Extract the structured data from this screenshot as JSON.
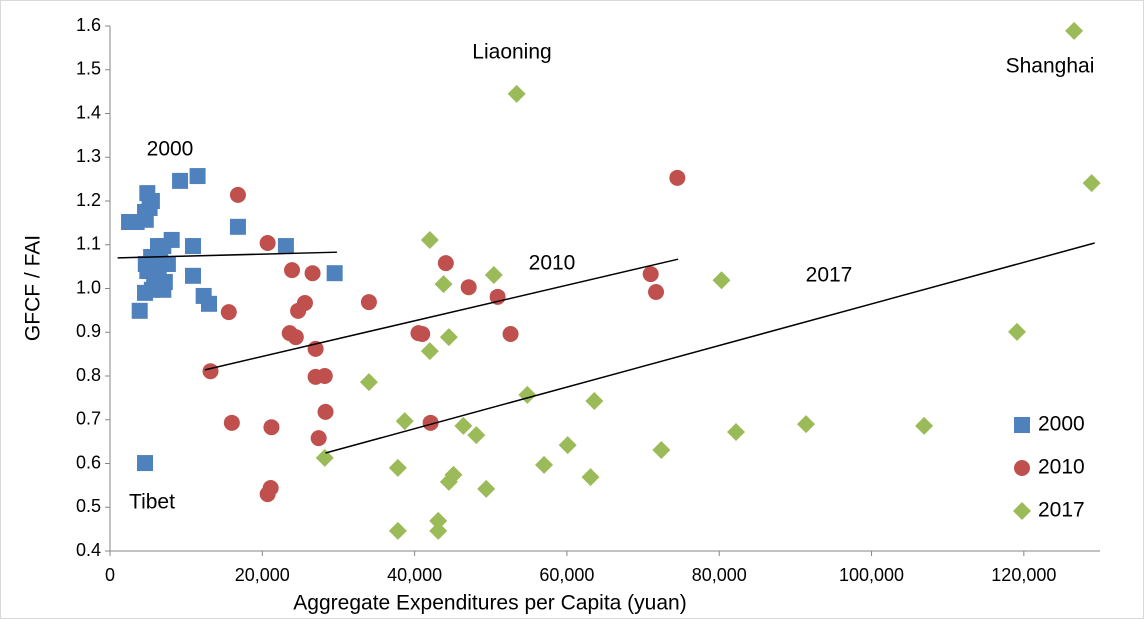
{
  "chart_data": {
    "type": "scatter",
    "x_label": "Aggregate Expenditures per Capita (yuan)",
    "y_label": "GFCF / FAI",
    "xlim": [
      0,
      130000
    ],
    "xticks": [
      0,
      {
        "value": 20000,
        "label": "20,000"
      },
      {
        "value": 40000,
        "label": "40,000"
      },
      {
        "value": 60000,
        "label": "60,000"
      },
      {
        "value": 80000,
        "label": "80,000"
      },
      {
        "value": 100000,
        "label": "100,000"
      },
      {
        "value": 120000,
        "label": "120,000"
      }
    ],
    "ylim": [
      0.4,
      1.6
    ],
    "yticks": [
      0.4,
      0.5,
      0.6,
      0.7,
      0.8,
      0.9,
      {
        "value": 1,
        "label": "1.0"
      },
      1.1,
      1.2,
      1.3,
      1.4,
      1.5,
      1.6
    ],
    "grid": false,
    "legend": "lower right",
    "annotations": [
      "Liaoning",
      "Shanghai",
      "Tibet",
      "2000",
      "2010",
      "2017"
    ],
    "series": [
      {
        "name": "2000",
        "color": "#4f81bd",
        "marker": "square",
        "x": [
          2500,
          3500,
          4700,
          5200,
          4900,
          5500,
          4600,
          4700,
          4900,
          5400,
          5800,
          6000,
          6300,
          6600,
          6400,
          6800,
          7000,
          6300,
          7000,
          5500,
          4600,
          3900,
          7200,
          7600,
          8100,
          9200,
          11500,
          10900,
          10900,
          12300,
          13000,
          16800,
          23100,
          29500,
          4600
        ],
        "values": [
          1.152,
          1.152,
          1.157,
          1.184,
          1.218,
          1.2,
          1.175,
          1.056,
          1.04,
          1.072,
          1.031,
          1.056,
          1.042,
          1.088,
          1.024,
          1.013,
          0.997,
          1.097,
          1.097,
          0.997,
          0.99,
          0.949,
          1.015,
          1.056,
          1.111,
          1.246,
          1.257,
          1.029,
          1.097,
          0.983,
          0.965,
          1.141,
          1.097,
          1.035,
          0.601
        ],
        "trendline": {
          "x": [
            1000,
            29800
          ],
          "values": [
            1.07,
            1.083
          ]
        }
      },
      {
        "name": "2010",
        "color": "#c0504d",
        "marker": "circle",
        "x": [
          16800,
          20700,
          23900,
          26600,
          25600,
          24700,
          23600,
          24400,
          27000,
          27000,
          28200,
          28300,
          27400,
          15600,
          13200,
          16000,
          21200,
          21100,
          20700,
          34000,
          44100,
          47100,
          50900,
          40500,
          41000,
          42100,
          52600,
          71000,
          71700,
          74500
        ],
        "values": [
          1.214,
          1.104,
          1.042,
          1.035,
          0.967,
          0.949,
          0.898,
          0.889,
          0.862,
          0.798,
          0.8,
          0.718,
          0.658,
          0.946,
          0.811,
          0.693,
          0.683,
          0.544,
          0.53,
          0.969,
          1.058,
          1.003,
          0.981,
          0.898,
          0.896,
          0.693,
          0.896,
          1.033,
          0.992,
          1.253
        ],
        "trendline": {
          "x": [
            12460,
            74600
          ],
          "values": [
            0.814,
            1.067
          ]
        }
      },
      {
        "name": "2017",
        "color": "#9bbb59",
        "marker": "diamond",
        "x": [
          126600,
          53400,
          128900,
          42000,
          50400,
          43800,
          80300,
          119100,
          44500,
          42000,
          34000,
          54800,
          63600,
          28200,
          38700,
          46400,
          48100,
          91400,
          106900,
          82200,
          72400,
          60100,
          57000,
          37800,
          63100,
          45100,
          44500,
          49400,
          43100,
          43100,
          37800
        ],
        "values": [
          1.589,
          1.445,
          1.241,
          1.111,
          1.031,
          1.01,
          1.019,
          0.901,
          0.889,
          0.857,
          0.786,
          0.757,
          0.743,
          0.613,
          0.697,
          0.686,
          0.665,
          0.69,
          0.686,
          0.672,
          0.631,
          0.642,
          0.597,
          0.59,
          0.569,
          0.574,
          0.558,
          0.542,
          0.469,
          0.446,
          0.446
        ],
        "trendline": {
          "x": [
            28300,
            129300
          ],
          "values": [
            0.624,
            1.104
          ]
        }
      }
    ]
  }
}
